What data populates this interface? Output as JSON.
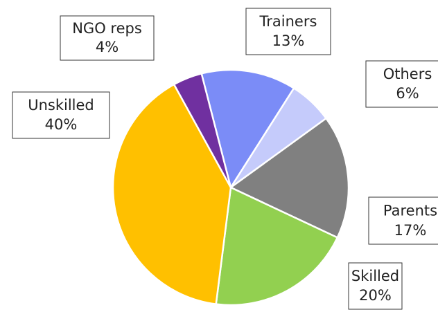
{
  "chart_data": {
    "type": "pie",
    "categories": [
      "Trainers",
      "Others",
      "Parents",
      "Skilled",
      "Unskilled",
      "NGO reps"
    ],
    "values": [
      13,
      6,
      17,
      20,
      40,
      4
    ],
    "value_labels": [
      "13%",
      "6%",
      "17%",
      "20%",
      "40%",
      "4%"
    ],
    "colors": [
      "#7b8cf7",
      "#c5cbfb",
      "#808080",
      "#92d050",
      "#ffc000",
      "#7030a0"
    ]
  }
}
